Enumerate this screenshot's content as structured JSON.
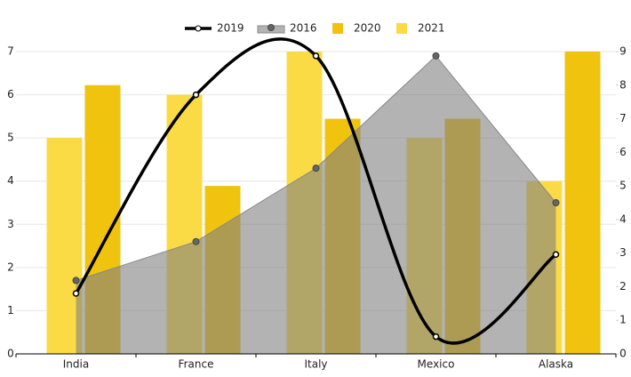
{
  "chart_data": {
    "type": "combo",
    "categories": [
      "India",
      "France",
      "Italy",
      "Mexico",
      "Alaska"
    ],
    "ylim": [
      0,
      7
    ],
    "yticks": [
      0,
      1,
      2,
      3,
      4,
      5,
      6,
      7
    ],
    "y2lim": [
      0,
      9
    ],
    "y2ticks": [
      0,
      1,
      2,
      3,
      4,
      5,
      6,
      7,
      8,
      9
    ],
    "grid": true,
    "series": [
      {
        "name": "2019",
        "type": "line",
        "color": "#000000",
        "values": [
          1.4,
          6,
          6.9,
          0.4,
          2.3
        ]
      },
      {
        "name": "2016",
        "type": "area",
        "color": "#888888",
        "values": [
          1.7,
          2.6,
          4.3,
          6.9,
          3.5
        ]
      },
      {
        "name": "2020",
        "type": "bar",
        "axis": "y2",
        "color": "#f0c30f",
        "values": [
          8,
          5,
          7,
          7,
          9
        ]
      },
      {
        "name": "2021",
        "type": "bar",
        "color": "#fbdb45",
        "values": [
          5,
          6,
          7,
          5,
          4
        ]
      }
    ]
  }
}
